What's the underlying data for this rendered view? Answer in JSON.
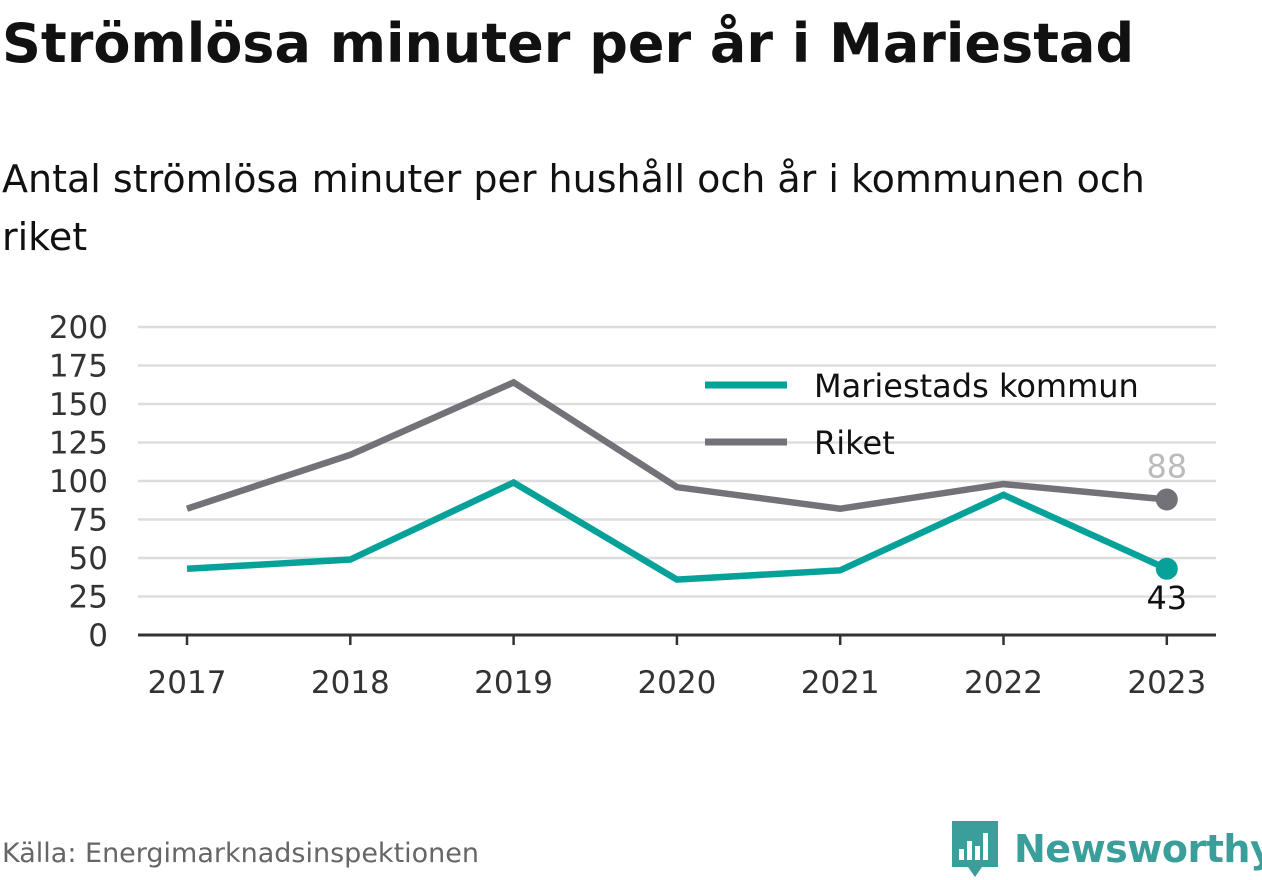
{
  "header": {
    "title": "Strömlösa minuter per år i Mariestad",
    "subtitle": "Antal strömlösa minuter per hushåll och år i kommunen och riket"
  },
  "footer": {
    "source": "Källa: Energimarknadsinspektionen",
    "brand": "Newsworthy"
  },
  "colors": {
    "mariestad": "#06a299",
    "riket": "#737278",
    "gridline": "#dddddd",
    "axis": "#333333",
    "brand": "#3a9e9a"
  },
  "chart_data": {
    "type": "line",
    "x": [
      "2017",
      "2018",
      "2019",
      "2020",
      "2021",
      "2022",
      "2023"
    ],
    "ylim": [
      0,
      200
    ],
    "yticks": [
      "0",
      "25",
      "50",
      "75",
      "100",
      "125",
      "150",
      "175",
      "200"
    ],
    "grid": true,
    "legend_position": "top-right",
    "series": [
      {
        "name": "Mariestads kommun",
        "color": "#06a299",
        "values": [
          43,
          49,
          99,
          36,
          42,
          91,
          43
        ],
        "end_label": "43"
      },
      {
        "name": "Riket",
        "color": "#737278",
        "values": [
          82,
          117,
          164,
          96,
          82,
          98,
          88
        ],
        "end_label": "88"
      }
    ]
  }
}
